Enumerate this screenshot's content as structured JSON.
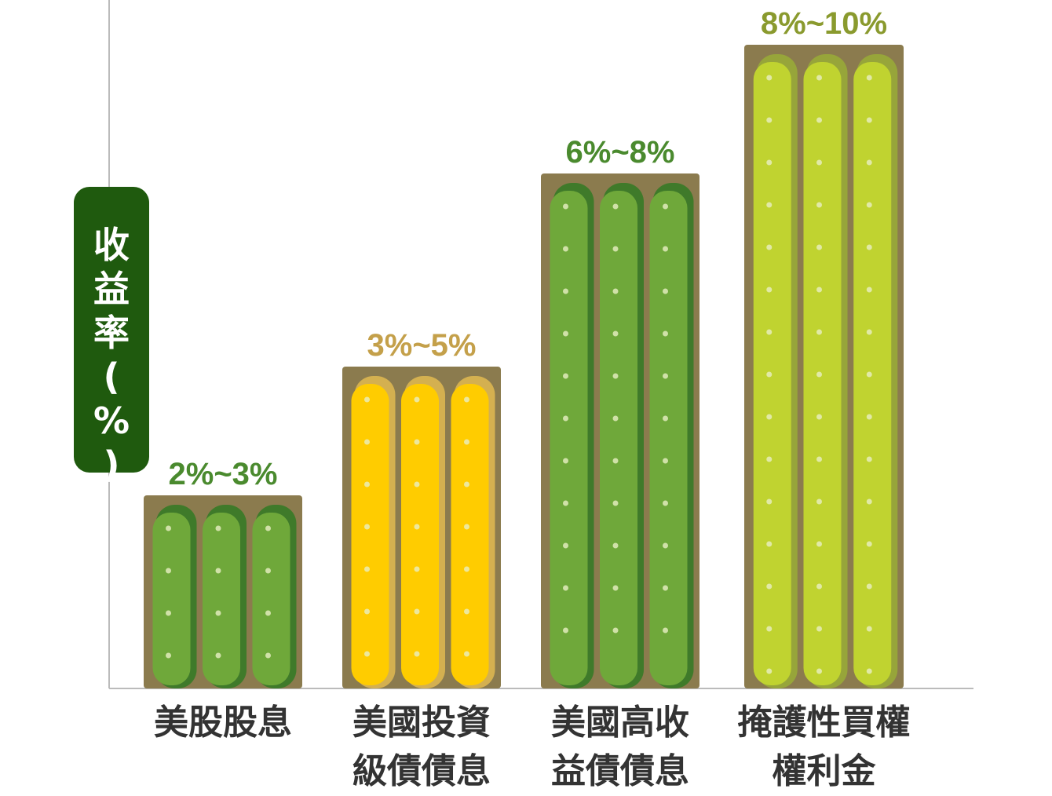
{
  "chart_data": {
    "type": "bar",
    "ylabel": "收益率(%)",
    "categories": [
      [
        "美股股息"
      ],
      [
        "美國投資",
        "級債債息"
      ],
      [
        "美國高收",
        "益債債息"
      ],
      [
        "掩護性買權",
        "權利金"
      ]
    ],
    "ranges": [
      [
        2,
        3
      ],
      [
        3,
        5
      ],
      [
        6,
        8
      ],
      [
        8,
        10
      ]
    ],
    "labels": [
      "2%~3%",
      "3%~5%",
      "6%~8%",
      "8%~10%"
    ],
    "label_colors": [
      "#4a8a2e",
      "#c4a04a",
      "#4a8a2e",
      "#8a9a2e"
    ],
    "plant_colors": [
      "#6fa83a",
      "#ffcc00",
      "#6fa83a",
      "#c0d330"
    ],
    "plant_edge_colors": [
      "#3f7a2a",
      "#d4b050",
      "#3f7a2a",
      "#97a53a"
    ],
    "soil_color": "#8b7b4e",
    "grid": false,
    "legend": "none"
  }
}
